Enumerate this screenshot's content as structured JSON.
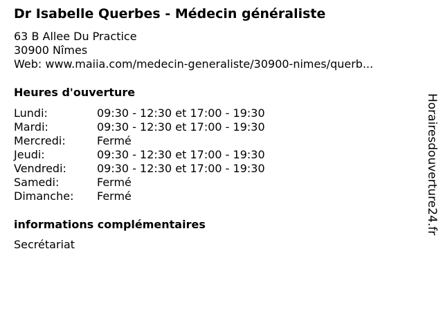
{
  "title": "Dr Isabelle Querbes - Médecin généraliste",
  "address": {
    "street": "63 B Allee Du Practice",
    "city": "30900 Nîmes",
    "web": "Web: www.maiia.com/medecin-generaliste/30900-nimes/querb..."
  },
  "hours_heading": "Heures d'ouverture",
  "hours": [
    {
      "day": "Lundi:",
      "time": "09:30 - 12:30 et 17:00 - 19:30"
    },
    {
      "day": "Mardi:",
      "time": "09:30 - 12:30 et 17:00 - 19:30"
    },
    {
      "day": "Mercredi:",
      "time": "Fermé"
    },
    {
      "day": "Jeudi:",
      "time": "09:30 - 12:30 et 17:00 - 19:30"
    },
    {
      "day": "Vendredi:",
      "time": "09:30 - 12:30 et 17:00 - 19:30"
    },
    {
      "day": "Samedi:",
      "time": "Fermé"
    },
    {
      "day": "Dimanche:",
      "time": "Fermé"
    }
  ],
  "info_heading": "informations complémentaires",
  "info_text": "Secrétariat",
  "watermark": "Horairesdouverture24.fr"
}
